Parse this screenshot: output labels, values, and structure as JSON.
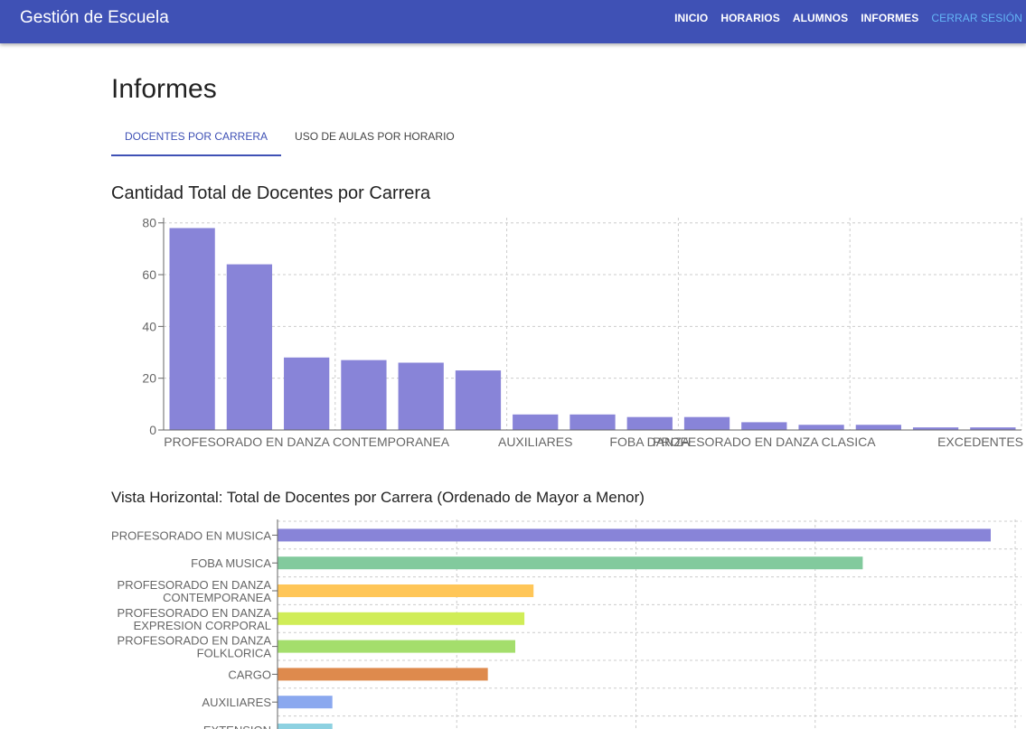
{
  "app": {
    "title": "Gestión de Escuela"
  },
  "nav": {
    "items": [
      "INICIO",
      "HORARIOS",
      "ALUMNOS",
      "INFORMES"
    ],
    "logout": "CERRAR SESIÓN"
  },
  "page": {
    "title": "Informes"
  },
  "tabs": [
    "DOCENTES POR CARRERA",
    "USO DE AULAS POR HORARIO"
  ],
  "colors": {
    "primary": "#3f51b5",
    "bar": "#8884d8",
    "palette": [
      "#8884d8",
      "#82ca9d",
      "#ffc658",
      "#d0ed57",
      "#a4de6c",
      "#de8a4d",
      "#8aa8ef",
      "#8dd1e1"
    ]
  },
  "chart_data": [
    {
      "type": "bar",
      "title": "Cantidad Total de Docentes por Carrera",
      "categories": [
        "PROFESORADO EN MUSICA",
        "FOBA MUSICA",
        "PROFESORADO EN DANZA CONTEMPORANEA",
        "PROFESORADO EN DANZA EXPRESION CORPORAL",
        "PROFESORADO EN DANZA FOLKLORICA",
        "CARGO",
        "AUXILIARES",
        "EXTENSION",
        "FOBA DANZA",
        "",
        "PROFESORADO EN DANZA CLASICA",
        "",
        "",
        "",
        "EXCEDENTES"
      ],
      "visible_tick_labels": [
        "PROFESORADO EN DANZA CONTEMPORANEA",
        "AUXILIARES",
        "FOBA DANZA",
        "PROFESORADO EN DANZA CLASICA",
        "EXCEDENTES"
      ],
      "values": [
        78,
        64,
        28,
        27,
        26,
        23,
        6,
        6,
        5,
        5,
        3,
        2,
        2,
        1,
        1
      ],
      "yticks": [
        0,
        20,
        40,
        60,
        80
      ],
      "ylim": [
        0,
        82
      ],
      "grid": true,
      "xlabel": "",
      "ylabel": ""
    },
    {
      "type": "bar",
      "orientation": "horizontal",
      "title": "Vista Horizontal: Total de Docentes por Carrera (Ordenado de Mayor a Menor)",
      "categories": [
        [
          "PROFESORADO EN MUSICA"
        ],
        [
          "FOBA MUSICA"
        ],
        [
          "PROFESORADO EN DANZA",
          "CONTEMPORANEA"
        ],
        [
          "PROFESORADO EN DANZA",
          "EXPRESION CORPORAL"
        ],
        [
          "PROFESORADO EN DANZA",
          "FOLKLORICA"
        ],
        [
          "CARGO"
        ],
        [
          "AUXILIARES"
        ],
        [
          "EXTENSION"
        ]
      ],
      "values": [
        78,
        64,
        28,
        27,
        26,
        23,
        6,
        6
      ],
      "xlim": [
        0,
        80
      ],
      "grid": true
    }
  ]
}
